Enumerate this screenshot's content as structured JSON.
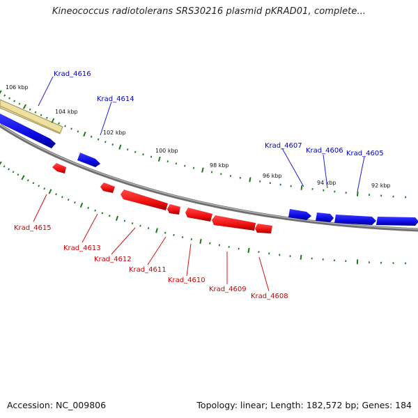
{
  "title": "Kineococcus radiotolerans SRS30216 plasmid pKRAD01, complete...",
  "footer": {
    "accession": "Accession: NC_009806",
    "summary": "Topology: linear; Length: 182,572 bp; Genes: 184"
  },
  "colors": {
    "forward_gene": "#1010dd",
    "reverse_gene": "#ee1111",
    "forward_label": "#0000bb",
    "reverse_label": "#cc0000",
    "ticks": "#1a7a1a",
    "backbone": "#777777",
    "highlight": "#eee0a0"
  },
  "kbp_labels": [
    {
      "id": "106",
      "text": "106 kbp"
    },
    {
      "id": "104",
      "text": "104 kbp"
    },
    {
      "id": "102",
      "text": "102 kbp"
    },
    {
      "id": "100",
      "text": "100 kbp"
    },
    {
      "id": "98",
      "text": "98 kbp"
    },
    {
      "id": "96",
      "text": "96 kbp"
    },
    {
      "id": "94",
      "text": "94 kbp"
    },
    {
      "id": "92",
      "text": "92 kbp"
    }
  ],
  "genes": [
    {
      "id": "4616",
      "label": "Krad_4616",
      "strand": "forward"
    },
    {
      "id": "4614",
      "label": "Krad_4614",
      "strand": "forward"
    },
    {
      "id": "4607",
      "label": "Krad_4607",
      "strand": "forward"
    },
    {
      "id": "4606",
      "label": "Krad_4606",
      "strand": "forward"
    },
    {
      "id": "4605",
      "label": "Krad_4605",
      "strand": "forward"
    },
    {
      "id": "4615",
      "label": "Krad_4615",
      "strand": "reverse"
    },
    {
      "id": "4613",
      "label": "Krad_4613",
      "strand": "reverse"
    },
    {
      "id": "4612",
      "label": "Krad_4612",
      "strand": "reverse"
    },
    {
      "id": "4611",
      "label": "Krad_4611",
      "strand": "reverse"
    },
    {
      "id": "4610",
      "label": "Krad_4610",
      "strand": "reverse"
    },
    {
      "id": "4609",
      "label": "Krad_4609",
      "strand": "reverse"
    },
    {
      "id": "4608",
      "label": "Krad_4608",
      "strand": "reverse"
    }
  ]
}
